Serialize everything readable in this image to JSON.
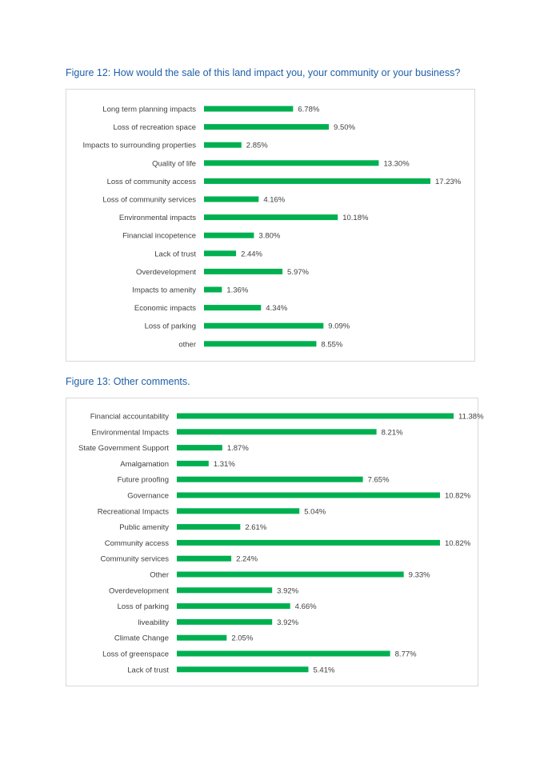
{
  "figures": [
    {
      "caption": "Figure 12: How would the sale of this land impact you, your community or your business?"
    },
    {
      "caption": "Figure 13: Other comments."
    }
  ],
  "colors": {
    "bar": "#00b050",
    "caption": "#1f5fa8",
    "text": "#404040",
    "frame": "#d9d9d9"
  },
  "chart_data": [
    {
      "type": "bar",
      "orientation": "horizontal",
      "title": "",
      "xlabel": "",
      "ylabel": "",
      "grid": false,
      "categories": [
        "Long term planning impacts",
        "Loss of recreation space",
        "Impacts to surrounding properties",
        "Quality of life",
        "Loss of community access",
        "Loss of community services",
        "Environmental impacts",
        "Financial incopetence",
        "Lack of trust",
        "Overdevelopment",
        "Impacts to amenity",
        "Economic impacts",
        "Loss of parking",
        "other"
      ],
      "values": [
        6.78,
        9.5,
        2.85,
        13.3,
        17.23,
        4.16,
        10.18,
        3.8,
        2.44,
        5.97,
        1.36,
        4.34,
        9.09,
        8.55
      ],
      "value_labels": [
        "6.78%",
        "9.50%",
        "2.85%",
        "13.30%",
        "17.23%",
        "4.16%",
        "10.18%",
        "3.80%",
        "2.44%",
        "5.97%",
        "1.36%",
        "4.34%",
        "9.09%",
        "8.55%"
      ],
      "xlim": [
        0,
        17.23
      ]
    },
    {
      "type": "bar",
      "orientation": "horizontal",
      "title": "",
      "xlabel": "",
      "ylabel": "",
      "grid": false,
      "categories": [
        "Financial accountability",
        "Environmental Impacts",
        "State Government Support",
        "Amalgamation",
        "Future proofing",
        "Governance",
        "Recreational Impacts",
        "Public amenity",
        "Community access",
        "Community services",
        "Other",
        "Overdevelopment",
        "Loss of parking",
        "liveability",
        "Climate Change",
        "Loss of greenspace",
        "Lack of trust"
      ],
      "values": [
        11.38,
        8.21,
        1.87,
        1.31,
        7.65,
        10.82,
        5.04,
        2.61,
        10.82,
        2.24,
        9.33,
        3.92,
        4.66,
        3.92,
        2.05,
        8.77,
        5.41
      ],
      "value_labels": [
        "11.38%",
        "8.21%",
        "1.87%",
        "1.31%",
        "7.65%",
        "10.82%",
        "5.04%",
        "2.61%",
        "10.82%",
        "2.24%",
        "9.33%",
        "3.92%",
        "4.66%",
        "3.92%",
        "2.05%",
        "8.77%",
        "5.41%"
      ],
      "xlim": [
        0,
        11.38
      ]
    }
  ]
}
